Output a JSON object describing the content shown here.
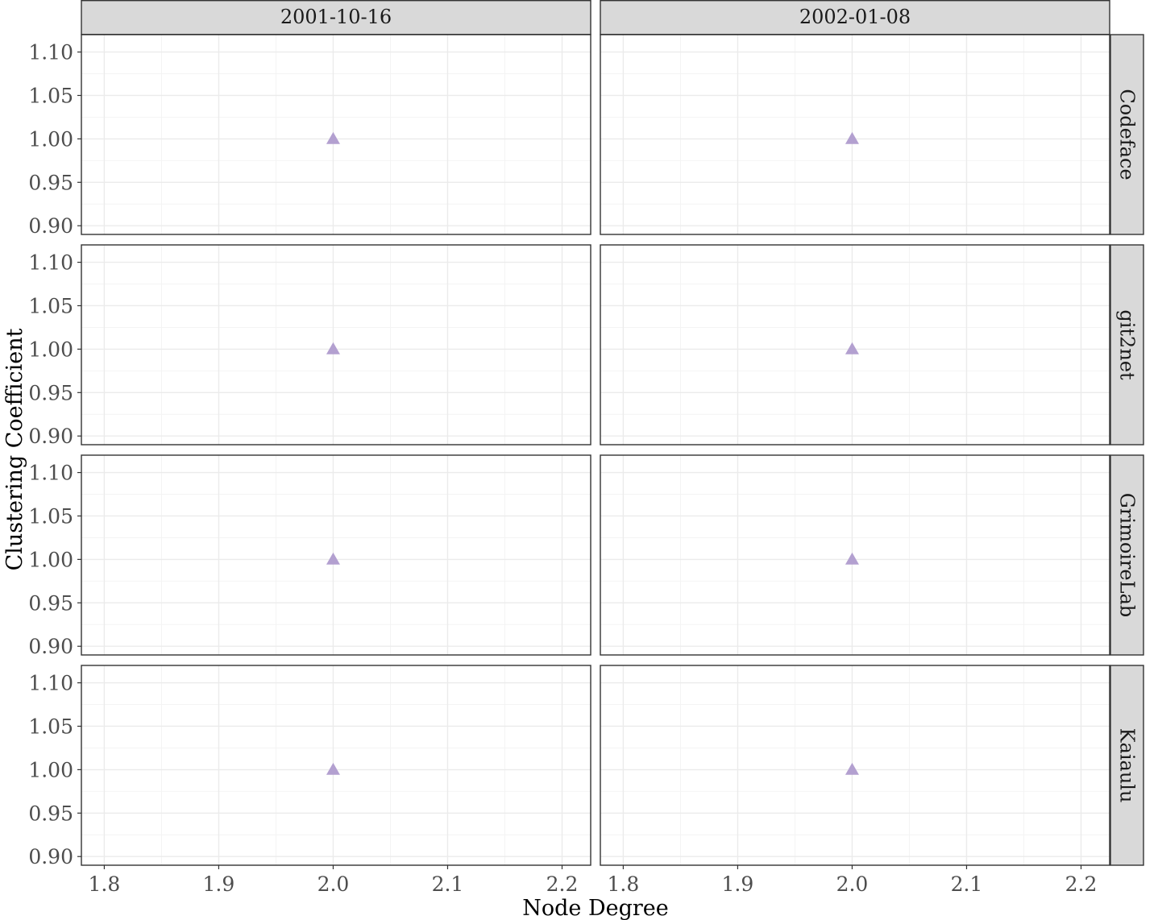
{
  "chart_data": {
    "type": "scatter",
    "facet_cols": [
      "2001-10-16",
      "2002-01-08"
    ],
    "facet_rows": [
      "Codeface",
      "git2net",
      "GrimoireLab",
      "Kaiaulu"
    ],
    "xlabel": "Node Degree",
    "ylabel": "Clustering Coefficient",
    "xlim": [
      1.78,
      2.225
    ],
    "ylim": [
      0.89,
      1.12
    ],
    "x_ticks": [
      "1.8",
      "1.9",
      "2.0",
      "2.1",
      "2.2"
    ],
    "y_ticks": [
      "0.90",
      "0.95",
      "1.00",
      "1.05",
      "1.10"
    ],
    "marker": "triangle",
    "marker_color": "#b3a0d0",
    "grid": true,
    "points": [
      {
        "row": "Codeface",
        "col": "2001-10-16",
        "x": 2.0,
        "y": 1.0
      },
      {
        "row": "Codeface",
        "col": "2002-01-08",
        "x": 2.0,
        "y": 1.0
      },
      {
        "row": "git2net",
        "col": "2001-10-16",
        "x": 2.0,
        "y": 1.0
      },
      {
        "row": "git2net",
        "col": "2002-01-08",
        "x": 2.0,
        "y": 1.0
      },
      {
        "row": "GrimoireLab",
        "col": "2001-10-16",
        "x": 2.0,
        "y": 1.0
      },
      {
        "row": "GrimoireLab",
        "col": "2002-01-08",
        "x": 2.0,
        "y": 1.0
      },
      {
        "row": "Kaiaulu",
        "col": "2001-10-16",
        "x": 2.0,
        "y": 1.0
      },
      {
        "row": "Kaiaulu",
        "col": "2002-01-08",
        "x": 2.0,
        "y": 1.0
      }
    ]
  }
}
